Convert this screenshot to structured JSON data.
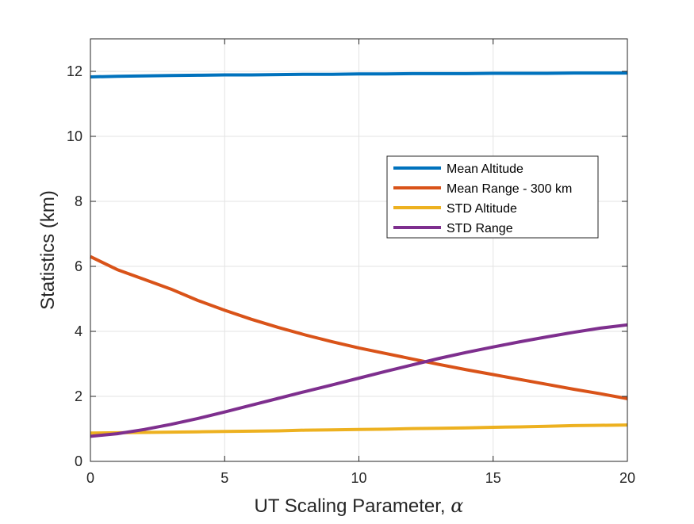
{
  "chart_data": {
    "type": "line",
    "xlabel": "UT Scaling Parameter, ",
    "xlabel_symbol": "α",
    "ylabel": "Statistics (km)",
    "xlim": [
      0,
      20
    ],
    "ylim": [
      0,
      13
    ],
    "xticks": [
      0,
      5,
      10,
      15,
      20
    ],
    "xtick_labels": [
      "0",
      "5",
      "10",
      "15",
      "20"
    ],
    "yticks": [
      0,
      2,
      4,
      6,
      8,
      10,
      12
    ],
    "ytick_labels": [
      "0",
      "2",
      "4",
      "6",
      "8",
      "10",
      "12"
    ],
    "grid": true,
    "legend_position": "upper-right-inside",
    "x": [
      0,
      1,
      2,
      3,
      4,
      5,
      6,
      7,
      8,
      9,
      10,
      11,
      12,
      13,
      14,
      15,
      16,
      17,
      18,
      19,
      20
    ],
    "series": [
      {
        "name": "Mean Altitude",
        "color": "#0072BD",
        "values": [
          11.83,
          11.85,
          11.86,
          11.87,
          11.88,
          11.89,
          11.89,
          11.9,
          11.91,
          11.91,
          11.92,
          11.92,
          11.93,
          11.93,
          11.93,
          11.94,
          11.94,
          11.94,
          11.95,
          11.95,
          11.95
        ]
      },
      {
        "name": "Mean Range - 300 km",
        "color": "#D95319",
        "values": [
          6.3,
          5.9,
          5.6,
          5.3,
          4.95,
          4.65,
          4.37,
          4.12,
          3.89,
          3.68,
          3.49,
          3.32,
          3.15,
          2.98,
          2.82,
          2.67,
          2.52,
          2.37,
          2.22,
          2.08,
          1.93
        ]
      },
      {
        "name": "STD Altitude",
        "color": "#EDB120",
        "values": [
          0.87,
          0.88,
          0.89,
          0.9,
          0.91,
          0.92,
          0.93,
          0.94,
          0.96,
          0.97,
          0.98,
          0.99,
          1.01,
          1.02,
          1.03,
          1.05,
          1.06,
          1.08,
          1.1,
          1.11,
          1.12
        ]
      },
      {
        "name": "STD Range",
        "color": "#7E2F8E",
        "values": [
          0.77,
          0.85,
          0.98,
          1.14,
          1.32,
          1.52,
          1.73,
          1.94,
          2.15,
          2.35,
          2.56,
          2.77,
          2.97,
          3.17,
          3.35,
          3.52,
          3.68,
          3.83,
          3.97,
          4.1,
          4.2
        ]
      }
    ]
  }
}
